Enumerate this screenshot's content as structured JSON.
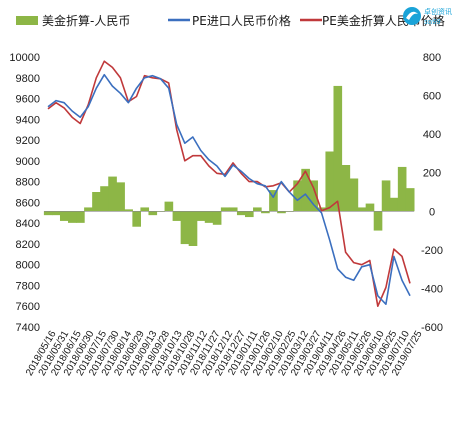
{
  "logo": {
    "name_cn": "卓创资讯",
    "name_en": "sci99"
  },
  "colors": {
    "bar": "#8db646",
    "usd_line": "#3b6fbf",
    "cny_line": "#c0393b"
  },
  "chart_data": {
    "type": "bar+line",
    "title": "",
    "legend": [
      {
        "key": "diff",
        "label": "美金折算-人民币",
        "kind": "bar",
        "color": "#8db646"
      },
      {
        "key": "cny",
        "label": "PE进口人民币价格",
        "kind": "line",
        "color": "#3b6fbf"
      },
      {
        "key": "usd",
        "label": "PE美金折算人民币价格",
        "kind": "line",
        "color": "#c0393b"
      }
    ],
    "left_axis": {
      "min": 7400,
      "max": 10000,
      "ticks": [
        7400,
        7600,
        7800,
        8000,
        8200,
        8400,
        8600,
        8800,
        9000,
        9200,
        9400,
        9600,
        9800,
        10000
      ]
    },
    "right_axis": {
      "min": -600,
      "max": 800,
      "ticks": [
        -600,
        -400,
        -200,
        0,
        200,
        400,
        600,
        800
      ]
    },
    "x_labels": [
      "2018/05/16",
      "2018/05/31",
      "2018/06/15",
      "2018/06/30",
      "2018/07/15",
      "2018/07/30",
      "2018/08/14",
      "2018/08/29",
      "2018/09/13",
      "2018/09/28",
      "2018/10/13",
      "2018/10/28",
      "2018/11/12",
      "2018/11/27",
      "2018/12/12",
      "2018/12/27",
      "2019/01/11",
      "2019/01/26",
      "2019/02/10",
      "2019/02/25",
      "2019/03/12",
      "2019/03/27",
      "2019/04/11",
      "2019/04/26",
      "2019/05/11",
      "2019/05/26",
      "2019/06/10",
      "2019/06/25",
      "2019/07/10",
      "2019/07/25"
    ],
    "cny_price": [
      9520,
      9580,
      9560,
      9480,
      9420,
      9520,
      9700,
      9830,
      9720,
      9650,
      9560,
      9700,
      9800,
      9820,
      9790,
      9700,
      9350,
      9170,
      9230,
      9100,
      9010,
      8950,
      8850,
      8960,
      8900,
      8830,
      8780,
      8760,
      8650,
      8800,
      8700,
      8620,
      8680,
      8580,
      8500,
      8240,
      7960,
      7880,
      7850,
      7980,
      8000,
      7700,
      7620,
      8080,
      7850,
      7700
    ],
    "usd_price": [
      9500,
      9560,
      9510,
      9420,
      9360,
      9540,
      9800,
      9960,
      9900,
      9800,
      9570,
      9620,
      9820,
      9800,
      9790,
      9750,
      9300,
      9000,
      9050,
      9050,
      8950,
      8880,
      8870,
      8980,
      8880,
      8800,
      8800,
      8750,
      8760,
      8790,
      8700,
      8780,
      8900,
      8740,
      8520,
      8550,
      8610,
      8120,
      8020,
      8000,
      8040,
      7600,
      7780,
      8150,
      8080,
      7820
    ],
    "diff": [
      -20,
      -20,
      -50,
      -60,
      -60,
      20,
      100,
      130,
      180,
      150,
      10,
      -80,
      20,
      -20,
      0,
      50,
      -50,
      -170,
      -180,
      -50,
      -60,
      -70,
      20,
      20,
      -20,
      -30,
      20,
      -10,
      110,
      -10,
      0,
      160,
      220,
      160,
      20,
      310,
      650,
      240,
      170,
      20,
      40,
      -100,
      160,
      70,
      230,
      120
    ]
  }
}
